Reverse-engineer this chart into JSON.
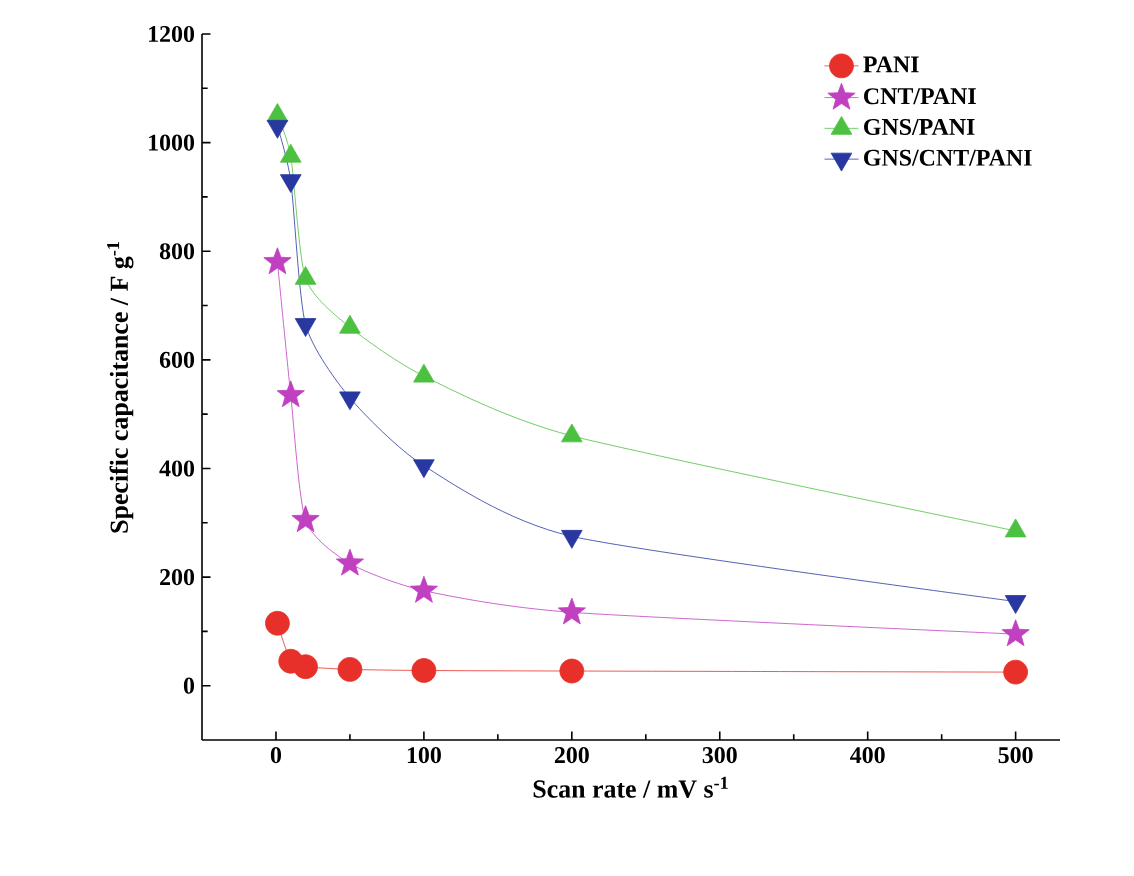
{
  "chart_data": {
    "type": "line",
    "xlabel": "Scan rate / mV s$^{-1}$",
    "ylabel": "Specific capacitance / F g$^{-1}$",
    "x": [
      1,
      10,
      20,
      50,
      100,
      200,
      500
    ],
    "series": [
      {
        "name": "PANI",
        "color": "#e8302a",
        "marker": "circle",
        "values": [
          115,
          45,
          35,
          30,
          28,
          27,
          25
        ]
      },
      {
        "name": "CNT/PANI",
        "color": "#c040c0",
        "marker": "star",
        "values": [
          780,
          535,
          305,
          225,
          175,
          135,
          95
        ]
      },
      {
        "name": "GNS/PANI",
        "color": "#4cc040",
        "marker": "triangle",
        "values": [
          1050,
          975,
          750,
          660,
          570,
          460,
          285
        ]
      },
      {
        "name": "GNS/CNT/PANI",
        "color": "#2838a0",
        "marker": "triangle-down",
        "values": [
          1030,
          930,
          665,
          530,
          405,
          275,
          155
        ]
      }
    ],
    "xlim": [
      -50,
      530
    ],
    "ylim": [
      -100,
      1200
    ],
    "xticks": [
      0,
      100,
      200,
      300,
      400,
      500
    ],
    "yticks": [
      0,
      200,
      400,
      600,
      800,
      1000,
      1200
    ],
    "grid": false,
    "legend": "top right"
  }
}
